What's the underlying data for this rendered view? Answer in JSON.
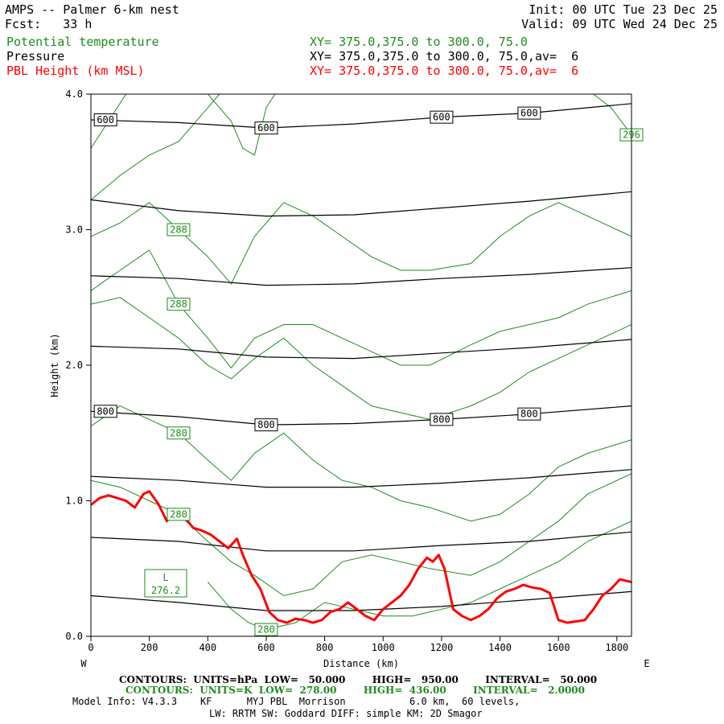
{
  "header": {
    "title": "AMPS -- Palmer 6-km nest",
    "init": "Init: 00 UTC Tue 23 Dec 25",
    "fcst": "Fcst:   33 h",
    "valid": "Valid: 09 UTC Wed 24 Dec 25",
    "fields": [
      {
        "name": "Potential temperature",
        "xy": "XY= 375.0,375.0 to 300.0, 75.0",
        "color": "#1e8c1e"
      },
      {
        "name": "Pressure",
        "xy": "XY= 375.0,375.0 to 300.0, 75.0,av=  6",
        "color": "#000000"
      },
      {
        "name": "PBL Height (km MSL)",
        "xy": "XY= 375.0,375.0 to 300.0, 75.0,av=  6",
        "color": "#ff0000"
      }
    ]
  },
  "footer": {
    "contours_p": "CONTOURS:  UNITS=hPa  LOW=   50.000        HIGH=   950.00        INTERVAL=   50.000",
    "contours_t": "CONTOURS:  UNITS=K  LOW=  278.00        HIGH=  436.00        INTERVAL=   2.0000",
    "model1": "Model Info: V4.3.3    KF      MYJ PBL  Morrison           6.0 km,  60 levels,",
    "model2": "LW: RRTM SW: Goddard DIFF: simple KM: 2D Smagor"
  },
  "chart_data": {
    "type": "line",
    "xlabel": "Distance (km)",
    "ylabel": "Height (km)",
    "xlim": [
      0,
      1850
    ],
    "ylim": [
      0,
      4
    ],
    "x_ticks": [
      "0",
      "200",
      "400",
      "600",
      "800",
      "1000",
      "1200",
      "1400",
      "1600",
      "1800"
    ],
    "x_tick_values": [
      0,
      200,
      400,
      600,
      800,
      1000,
      1200,
      1400,
      1600,
      1800
    ],
    "y_ticks": [
      "0.0",
      "1.0",
      "2.0",
      "3.0",
      "4.0"
    ],
    "y_tick_values": [
      0,
      1,
      2,
      3,
      4
    ],
    "left_end": "W",
    "right_end": "E",
    "low_marker": {
      "label": "L",
      "value": "276.2",
      "x": 250,
      "y": 0.39
    },
    "pressure_contours": [
      {
        "level": "600",
        "points": [
          [
            0,
            3.81
          ],
          [
            300,
            3.79
          ],
          [
            600,
            3.75
          ],
          [
            900,
            3.78
          ],
          [
            1200,
            3.83
          ],
          [
            1500,
            3.86
          ],
          [
            1850,
            3.93
          ]
        ]
      },
      {
        "level": "",
        "points": [
          [
            0,
            3.22
          ],
          [
            300,
            3.14
          ],
          [
            600,
            3.1
          ],
          [
            900,
            3.11
          ],
          [
            1200,
            3.16
          ],
          [
            1500,
            3.21
          ],
          [
            1850,
            3.28
          ]
        ]
      },
      {
        "level": "",
        "points": [
          [
            0,
            2.66
          ],
          [
            300,
            2.64
          ],
          [
            600,
            2.59
          ],
          [
            900,
            2.6
          ],
          [
            1200,
            2.64
          ],
          [
            1500,
            2.67
          ],
          [
            1850,
            2.72
          ]
        ]
      },
      {
        "level": "",
        "points": [
          [
            0,
            2.14
          ],
          [
            300,
            2.12
          ],
          [
            600,
            2.06
          ],
          [
            900,
            2.05
          ],
          [
            1200,
            2.09
          ],
          [
            1500,
            2.13
          ],
          [
            1850,
            2.19
          ]
        ]
      },
      {
        "level": "800",
        "points": [
          [
            0,
            1.66
          ],
          [
            300,
            1.62
          ],
          [
            600,
            1.56
          ],
          [
            900,
            1.57
          ],
          [
            1200,
            1.6
          ],
          [
            1500,
            1.64
          ],
          [
            1850,
            1.7
          ]
        ]
      },
      {
        "level": "",
        "points": [
          [
            0,
            1.18
          ],
          [
            300,
            1.15
          ],
          [
            600,
            1.1
          ],
          [
            900,
            1.1
          ],
          [
            1200,
            1.13
          ],
          [
            1500,
            1.17
          ],
          [
            1850,
            1.23
          ]
        ]
      },
      {
        "level": "",
        "points": [
          [
            0,
            0.73
          ],
          [
            300,
            0.7
          ],
          [
            600,
            0.63
          ],
          [
            900,
            0.63
          ],
          [
            1200,
            0.67
          ],
          [
            1500,
            0.7
          ],
          [
            1850,
            0.77
          ]
        ]
      },
      {
        "level": "",
        "points": [
          [
            0,
            0.3
          ],
          [
            300,
            0.25
          ],
          [
            600,
            0.19
          ],
          [
            900,
            0.19
          ],
          [
            1200,
            0.22
          ],
          [
            1500,
            0.27
          ],
          [
            1850,
            0.33
          ]
        ]
      }
    ],
    "theta_contours": [
      {
        "level": "296",
        "points": [
          [
            1720,
            4.0
          ],
          [
            1780,
            3.9
          ],
          [
            1850,
            3.7
          ]
        ]
      },
      {
        "level": "",
        "points": [
          [
            0,
            3.6
          ],
          [
            60,
            3.8
          ],
          [
            120,
            4.0
          ]
        ]
      },
      {
        "level": "",
        "points": [
          [
            0,
            3.22
          ],
          [
            100,
            3.4
          ],
          [
            200,
            3.55
          ],
          [
            300,
            3.65
          ],
          [
            400,
            3.9
          ],
          [
            440,
            4.0
          ]
        ]
      },
      {
        "level": "",
        "points": [
          [
            400,
            4.0
          ],
          [
            480,
            3.8
          ],
          [
            520,
            3.6
          ],
          [
            560,
            3.55
          ],
          [
            600,
            3.9
          ],
          [
            630,
            4.0
          ]
        ]
      },
      {
        "level": "288",
        "points": [
          [
            0,
            2.95
          ],
          [
            100,
            3.05
          ],
          [
            200,
            3.2
          ],
          [
            300,
            3.0
          ],
          [
            400,
            2.8
          ],
          [
            480,
            2.6
          ],
          [
            560,
            2.95
          ],
          [
            660,
            3.2
          ],
          [
            760,
            3.1
          ],
          [
            860,
            2.95
          ],
          [
            960,
            2.8
          ],
          [
            1060,
            2.7
          ],
          [
            1160,
            2.7
          ],
          [
            1300,
            2.75
          ],
          [
            1400,
            2.95
          ],
          [
            1500,
            3.1
          ],
          [
            1600,
            3.2
          ],
          [
            1700,
            3.1
          ],
          [
            1850,
            2.95
          ]
        ]
      },
      {
        "level": "288",
        "points": [
          [
            0,
            2.55
          ],
          [
            100,
            2.7
          ],
          [
            200,
            2.85
          ],
          [
            300,
            2.45
          ],
          [
            400,
            2.2
          ],
          [
            480,
            1.98
          ],
          [
            560,
            2.2
          ],
          [
            660,
            2.3
          ],
          [
            760,
            2.3
          ],
          [
            860,
            2.2
          ],
          [
            960,
            2.1
          ],
          [
            1060,
            2.0
          ],
          [
            1160,
            2.0
          ],
          [
            1300,
            2.15
          ],
          [
            1400,
            2.25
          ],
          [
            1500,
            2.3
          ],
          [
            1600,
            2.35
          ],
          [
            1700,
            2.45
          ],
          [
            1850,
            2.55
          ]
        ]
      },
      {
        "level": "",
        "points": [
          [
            0,
            2.45
          ],
          [
            100,
            2.5
          ],
          [
            200,
            2.35
          ],
          [
            300,
            2.2
          ],
          [
            400,
            2.0
          ],
          [
            480,
            1.9
          ],
          [
            560,
            2.05
          ],
          [
            660,
            2.2
          ],
          [
            760,
            2.0
          ],
          [
            860,
            1.85
          ],
          [
            960,
            1.7
          ],
          [
            1060,
            1.65
          ],
          [
            1160,
            1.6
          ],
          [
            1300,
            1.7
          ],
          [
            1400,
            1.8
          ],
          [
            1500,
            1.95
          ],
          [
            1600,
            2.05
          ],
          [
            1700,
            2.15
          ],
          [
            1850,
            2.3
          ]
        ]
      },
      {
        "level": "280",
        "points": [
          [
            0,
            1.55
          ],
          [
            100,
            1.7
          ],
          [
            200,
            1.6
          ],
          [
            300,
            1.5
          ],
          [
            400,
            1.3
          ],
          [
            480,
            1.15
          ],
          [
            560,
            1.35
          ],
          [
            660,
            1.5
          ],
          [
            760,
            1.3
          ],
          [
            860,
            1.15
          ],
          [
            960,
            1.1
          ],
          [
            1060,
            1.0
          ],
          [
            1160,
            0.95
          ],
          [
            1300,
            0.85
          ],
          [
            1400,
            0.9
          ],
          [
            1500,
            1.05
          ],
          [
            1600,
            1.25
          ],
          [
            1700,
            1.35
          ],
          [
            1850,
            1.45
          ]
        ]
      },
      {
        "level": "280",
        "points": [
          [
            0,
            1.15
          ],
          [
            100,
            1.1
          ],
          [
            200,
            1.0
          ],
          [
            300,
            0.9
          ],
          [
            400,
            0.7
          ],
          [
            480,
            0.55
          ],
          [
            560,
            0.45
          ],
          [
            660,
            0.3
          ],
          [
            760,
            0.35
          ],
          [
            860,
            0.55
          ],
          [
            960,
            0.6
          ],
          [
            1060,
            0.55
          ],
          [
            1160,
            0.5
          ],
          [
            1300,
            0.45
          ],
          [
            1400,
            0.55
          ],
          [
            1500,
            0.7
          ],
          [
            1600,
            0.85
          ],
          [
            1700,
            1.05
          ],
          [
            1850,
            1.2
          ]
        ]
      },
      {
        "level": "280",
        "points": [
          [
            400,
            0.4
          ],
          [
            480,
            0.2
          ],
          [
            540,
            0.1
          ],
          [
            600,
            0.05
          ],
          [
            700,
            0.1
          ],
          [
            800,
            0.25
          ],
          [
            900,
            0.2
          ],
          [
            1000,
            0.15
          ],
          [
            1100,
            0.15
          ],
          [
            1200,
            0.2
          ],
          [
            1300,
            0.25
          ],
          [
            1400,
            0.35
          ],
          [
            1500,
            0.45
          ],
          [
            1600,
            0.55
          ],
          [
            1700,
            0.7
          ],
          [
            1850,
            0.85
          ]
        ]
      }
    ],
    "pbl_height": [
      [
        0,
        0.97
      ],
      [
        30,
        1.02
      ],
      [
        60,
        1.04
      ],
      [
        90,
        1.02
      ],
      [
        120,
        1.0
      ],
      [
        150,
        0.95
      ],
      [
        180,
        1.05
      ],
      [
        200,
        1.07
      ],
      [
        230,
        0.98
      ],
      [
        260,
        0.85
      ],
      [
        290,
        0.92
      ],
      [
        320,
        0.88
      ],
      [
        350,
        0.8
      ],
      [
        380,
        0.78
      ],
      [
        410,
        0.75
      ],
      [
        440,
        0.7
      ],
      [
        470,
        0.65
      ],
      [
        500,
        0.72
      ],
      [
        520,
        0.6
      ],
      [
        550,
        0.45
      ],
      [
        580,
        0.35
      ],
      [
        610,
        0.18
      ],
      [
        640,
        0.12
      ],
      [
        670,
        0.1
      ],
      [
        700,
        0.13
      ],
      [
        730,
        0.12
      ],
      [
        760,
        0.1
      ],
      [
        790,
        0.12
      ],
      [
        820,
        0.18
      ],
      [
        850,
        0.2
      ],
      [
        880,
        0.25
      ],
      [
        910,
        0.2
      ],
      [
        940,
        0.15
      ],
      [
        970,
        0.12
      ],
      [
        1000,
        0.2
      ],
      [
        1030,
        0.25
      ],
      [
        1060,
        0.3
      ],
      [
        1090,
        0.38
      ],
      [
        1120,
        0.5
      ],
      [
        1150,
        0.58
      ],
      [
        1170,
        0.55
      ],
      [
        1190,
        0.6
      ],
      [
        1210,
        0.5
      ],
      [
        1240,
        0.2
      ],
      [
        1270,
        0.15
      ],
      [
        1300,
        0.12
      ],
      [
        1330,
        0.15
      ],
      [
        1360,
        0.2
      ],
      [
        1390,
        0.28
      ],
      [
        1420,
        0.33
      ],
      [
        1450,
        0.35
      ],
      [
        1480,
        0.38
      ],
      [
        1510,
        0.36
      ],
      [
        1540,
        0.35
      ],
      [
        1570,
        0.32
      ],
      [
        1600,
        0.12
      ],
      [
        1630,
        0.1
      ],
      [
        1660,
        0.11
      ],
      [
        1690,
        0.12
      ],
      [
        1720,
        0.2
      ],
      [
        1750,
        0.3
      ],
      [
        1780,
        0.35
      ],
      [
        1810,
        0.42
      ],
      [
        1850,
        0.4
      ]
    ]
  }
}
